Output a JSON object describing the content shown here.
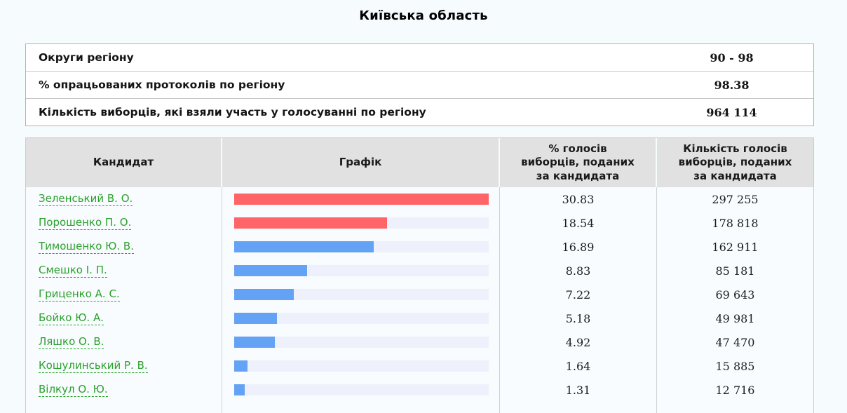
{
  "page": {
    "title": "Київська область"
  },
  "region_summary": [
    {
      "label": "Округи регіону",
      "value": "90 - 98"
    },
    {
      "label": "% опрацьованих протоколів по регіону",
      "value": "98.38"
    },
    {
      "label": "Кількість виборців, які взяли участь у голосуванні по регіону",
      "value": "964 114"
    }
  ],
  "results_table": {
    "columns": {
      "candidate": "Кандидат",
      "chart": "Графік",
      "percent": "% голосів виборців, поданих за кандидата",
      "votes": "Кількість голосів виборців, поданих за кандидата"
    },
    "candidates": [
      {
        "name": "Зеленський В. О.",
        "percent": 30.83,
        "percent_text": "30.83",
        "votes_text": "297 255",
        "bar_color": "red"
      },
      {
        "name": "Порошенко П. О.",
        "percent": 18.54,
        "percent_text": "18.54",
        "votes_text": "178 818",
        "bar_color": "red"
      },
      {
        "name": "Тимошенко Ю. В.",
        "percent": 16.89,
        "percent_text": "16.89",
        "votes_text": "162 911",
        "bar_color": "blue"
      },
      {
        "name": "Смешко І. П.",
        "percent": 8.83,
        "percent_text": "8.83",
        "votes_text": "85 181",
        "bar_color": "blue"
      },
      {
        "name": "Гриценко А. С.",
        "percent": 7.22,
        "percent_text": "7.22",
        "votes_text": "69 643",
        "bar_color": "blue"
      },
      {
        "name": "Бойко Ю. А.",
        "percent": 5.18,
        "percent_text": "5.18",
        "votes_text": "49 981",
        "bar_color": "blue"
      },
      {
        "name": "Ляшко О. В.",
        "percent": 4.92,
        "percent_text": "4.92",
        "votes_text": "47 470",
        "bar_color": "blue"
      },
      {
        "name": "Кошулинський Р. В.",
        "percent": 1.64,
        "percent_text": "1.64",
        "votes_text": "15 885",
        "bar_color": "blue"
      },
      {
        "name": "Вілкул О. Ю.",
        "percent": 1.31,
        "percent_text": "1.31",
        "votes_text": "12 716",
        "bar_color": "blue"
      }
    ]
  },
  "colors": {
    "red": "#ff6468",
    "blue": "#64a2f6",
    "bar_track": "#eef1fc",
    "link_green": "#2ba12b",
    "header_bg": "#e1e1e1"
  },
  "chart_data": {
    "type": "bar",
    "orientation": "horizontal",
    "title": "Київська область",
    "categories": [
      "Зеленський В. О.",
      "Порошенко П. О.",
      "Тимошенко Ю. В.",
      "Смешко І. П.",
      "Гриценко А. С.",
      "Бойко Ю. А.",
      "Ляшко О. В.",
      "Кошулинський Р. В.",
      "Вілкул О. Ю."
    ],
    "values": [
      30.83,
      18.54,
      16.89,
      8.83,
      7.22,
      5.18,
      4.92,
      1.64,
      1.31
    ],
    "votes": [
      297255,
      178818,
      162911,
      85181,
      69643,
      49981,
      47470,
      15885,
      12716
    ],
    "xlabel": "% голосів виборців, поданих за кандидата",
    "xlim": [
      0,
      30.83
    ],
    "bar_colors": [
      "red",
      "red",
      "blue",
      "blue",
      "blue",
      "blue",
      "blue",
      "blue",
      "blue"
    ],
    "grid": false,
    "legend": false
  }
}
